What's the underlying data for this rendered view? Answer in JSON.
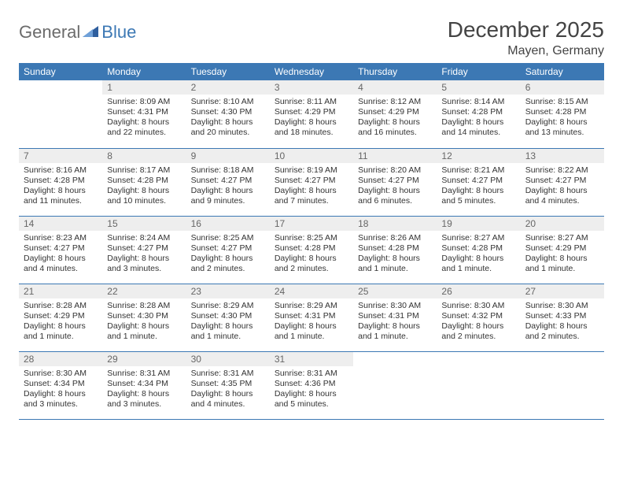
{
  "logo": {
    "part1": "General",
    "part2": "Blue"
  },
  "title": "December 2025",
  "location": "Mayen, Germany",
  "colors": {
    "header_bg": "#3c78b4",
    "header_fg": "#ffffff",
    "daynum_bg": "#eeeeee",
    "daynum_fg": "#666666",
    "text": "#333333",
    "rule": "#3c78b4",
    "logo_gray": "#6b6b6b",
    "logo_blue": "#3c78b4"
  },
  "typography": {
    "title_size": 28,
    "location_size": 16,
    "weekday_size": 12,
    "daynum_size": 12,
    "body_size": 10.5
  },
  "weekdays": [
    "Sunday",
    "Monday",
    "Tuesday",
    "Wednesday",
    "Thursday",
    "Friday",
    "Saturday"
  ],
  "weeks": [
    [
      {
        "blank": true
      },
      {
        "n": "1",
        "sunrise": "Sunrise: 8:09 AM",
        "sunset": "Sunset: 4:31 PM",
        "daylight": "Daylight: 8 hours and 22 minutes."
      },
      {
        "n": "2",
        "sunrise": "Sunrise: 8:10 AM",
        "sunset": "Sunset: 4:30 PM",
        "daylight": "Daylight: 8 hours and 20 minutes."
      },
      {
        "n": "3",
        "sunrise": "Sunrise: 8:11 AM",
        "sunset": "Sunset: 4:29 PM",
        "daylight": "Daylight: 8 hours and 18 minutes."
      },
      {
        "n": "4",
        "sunrise": "Sunrise: 8:12 AM",
        "sunset": "Sunset: 4:29 PM",
        "daylight": "Daylight: 8 hours and 16 minutes."
      },
      {
        "n": "5",
        "sunrise": "Sunrise: 8:14 AM",
        "sunset": "Sunset: 4:28 PM",
        "daylight": "Daylight: 8 hours and 14 minutes."
      },
      {
        "n": "6",
        "sunrise": "Sunrise: 8:15 AM",
        "sunset": "Sunset: 4:28 PM",
        "daylight": "Daylight: 8 hours and 13 minutes."
      }
    ],
    [
      {
        "n": "7",
        "sunrise": "Sunrise: 8:16 AM",
        "sunset": "Sunset: 4:28 PM",
        "daylight": "Daylight: 8 hours and 11 minutes."
      },
      {
        "n": "8",
        "sunrise": "Sunrise: 8:17 AM",
        "sunset": "Sunset: 4:28 PM",
        "daylight": "Daylight: 8 hours and 10 minutes."
      },
      {
        "n": "9",
        "sunrise": "Sunrise: 8:18 AM",
        "sunset": "Sunset: 4:27 PM",
        "daylight": "Daylight: 8 hours and 9 minutes."
      },
      {
        "n": "10",
        "sunrise": "Sunrise: 8:19 AM",
        "sunset": "Sunset: 4:27 PM",
        "daylight": "Daylight: 8 hours and 7 minutes."
      },
      {
        "n": "11",
        "sunrise": "Sunrise: 8:20 AM",
        "sunset": "Sunset: 4:27 PM",
        "daylight": "Daylight: 8 hours and 6 minutes."
      },
      {
        "n": "12",
        "sunrise": "Sunrise: 8:21 AM",
        "sunset": "Sunset: 4:27 PM",
        "daylight": "Daylight: 8 hours and 5 minutes."
      },
      {
        "n": "13",
        "sunrise": "Sunrise: 8:22 AM",
        "sunset": "Sunset: 4:27 PM",
        "daylight": "Daylight: 8 hours and 4 minutes."
      }
    ],
    [
      {
        "n": "14",
        "sunrise": "Sunrise: 8:23 AM",
        "sunset": "Sunset: 4:27 PM",
        "daylight": "Daylight: 8 hours and 4 minutes."
      },
      {
        "n": "15",
        "sunrise": "Sunrise: 8:24 AM",
        "sunset": "Sunset: 4:27 PM",
        "daylight": "Daylight: 8 hours and 3 minutes."
      },
      {
        "n": "16",
        "sunrise": "Sunrise: 8:25 AM",
        "sunset": "Sunset: 4:27 PM",
        "daylight": "Daylight: 8 hours and 2 minutes."
      },
      {
        "n": "17",
        "sunrise": "Sunrise: 8:25 AM",
        "sunset": "Sunset: 4:28 PM",
        "daylight": "Daylight: 8 hours and 2 minutes."
      },
      {
        "n": "18",
        "sunrise": "Sunrise: 8:26 AM",
        "sunset": "Sunset: 4:28 PM",
        "daylight": "Daylight: 8 hours and 1 minute."
      },
      {
        "n": "19",
        "sunrise": "Sunrise: 8:27 AM",
        "sunset": "Sunset: 4:28 PM",
        "daylight": "Daylight: 8 hours and 1 minute."
      },
      {
        "n": "20",
        "sunrise": "Sunrise: 8:27 AM",
        "sunset": "Sunset: 4:29 PM",
        "daylight": "Daylight: 8 hours and 1 minute."
      }
    ],
    [
      {
        "n": "21",
        "sunrise": "Sunrise: 8:28 AM",
        "sunset": "Sunset: 4:29 PM",
        "daylight": "Daylight: 8 hours and 1 minute."
      },
      {
        "n": "22",
        "sunrise": "Sunrise: 8:28 AM",
        "sunset": "Sunset: 4:30 PM",
        "daylight": "Daylight: 8 hours and 1 minute."
      },
      {
        "n": "23",
        "sunrise": "Sunrise: 8:29 AM",
        "sunset": "Sunset: 4:30 PM",
        "daylight": "Daylight: 8 hours and 1 minute."
      },
      {
        "n": "24",
        "sunrise": "Sunrise: 8:29 AM",
        "sunset": "Sunset: 4:31 PM",
        "daylight": "Daylight: 8 hours and 1 minute."
      },
      {
        "n": "25",
        "sunrise": "Sunrise: 8:30 AM",
        "sunset": "Sunset: 4:31 PM",
        "daylight": "Daylight: 8 hours and 1 minute."
      },
      {
        "n": "26",
        "sunrise": "Sunrise: 8:30 AM",
        "sunset": "Sunset: 4:32 PM",
        "daylight": "Daylight: 8 hours and 2 minutes."
      },
      {
        "n": "27",
        "sunrise": "Sunrise: 8:30 AM",
        "sunset": "Sunset: 4:33 PM",
        "daylight": "Daylight: 8 hours and 2 minutes."
      }
    ],
    [
      {
        "n": "28",
        "sunrise": "Sunrise: 8:30 AM",
        "sunset": "Sunset: 4:34 PM",
        "daylight": "Daylight: 8 hours and 3 minutes."
      },
      {
        "n": "29",
        "sunrise": "Sunrise: 8:31 AM",
        "sunset": "Sunset: 4:34 PM",
        "daylight": "Daylight: 8 hours and 3 minutes."
      },
      {
        "n": "30",
        "sunrise": "Sunrise: 8:31 AM",
        "sunset": "Sunset: 4:35 PM",
        "daylight": "Daylight: 8 hours and 4 minutes."
      },
      {
        "n": "31",
        "sunrise": "Sunrise: 8:31 AM",
        "sunset": "Sunset: 4:36 PM",
        "daylight": "Daylight: 8 hours and 5 minutes."
      },
      {
        "blank": true
      },
      {
        "blank": true
      },
      {
        "blank": true
      }
    ]
  ]
}
